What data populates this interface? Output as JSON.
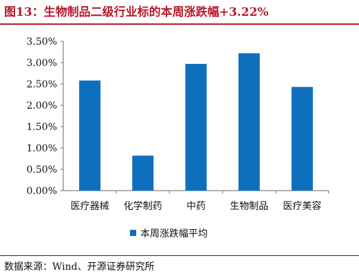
{
  "header": {
    "title": "图13：生物制品二级行业标的本周涨跌幅+3.22%"
  },
  "footer": {
    "source": "数据来源：Wind、开源证券研究所"
  },
  "colors": {
    "bar": "#0f6fbf",
    "title": "#b71c2a"
  },
  "chart_data": {
    "type": "bar",
    "title": "",
    "xlabel": "",
    "ylabel": "",
    "categories": [
      "医疗器械",
      "化学制药",
      "中药",
      "生物制品",
      "医疗美容"
    ],
    "series": [
      {
        "name": "本周涨跌幅平均",
        "values": [
          2.58,
          0.82,
          2.97,
          3.22,
          2.43
        ]
      }
    ],
    "ylim": [
      0,
      3.5
    ],
    "yticks": [
      "0.00%",
      "0.50%",
      "1.00%",
      "1.50%",
      "2.00%",
      "2.50%",
      "3.00%",
      "3.50%"
    ],
    "grid": false,
    "legend": "bottom"
  }
}
